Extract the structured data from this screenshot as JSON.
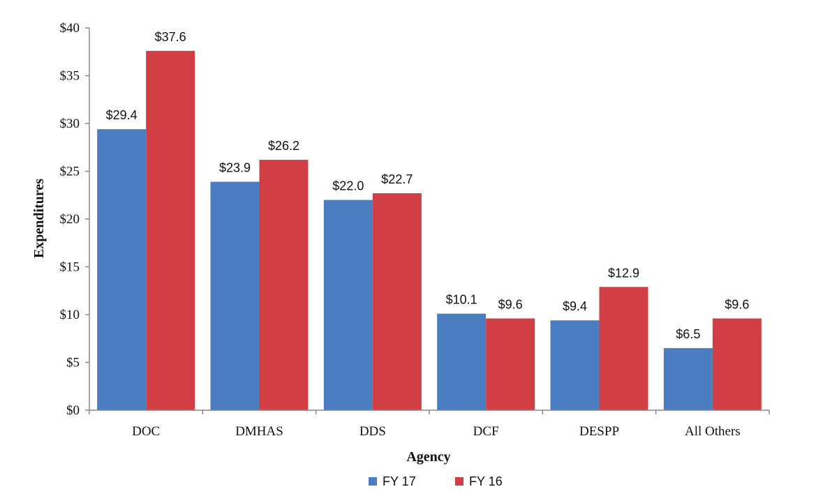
{
  "chart_data": {
    "type": "bar",
    "title": "",
    "xlabel": "Agency",
    "ylabel": "Expenditures",
    "categories": [
      "DOC",
      "DMHAS",
      "DDS",
      "DCF",
      "DESPP",
      "All Others"
    ],
    "series": [
      {
        "name": "FY 17",
        "color": "#4a7ec1",
        "values": [
          29.4,
          23.9,
          22.0,
          10.1,
          9.4,
          6.5
        ],
        "labels": [
          "$29.4",
          "$23.9",
          "$22.0",
          "$10.1",
          "$9.4",
          "$6.5"
        ]
      },
      {
        "name": "FY 16",
        "color": "#d13f44",
        "values": [
          37.6,
          26.2,
          22.7,
          9.6,
          12.9,
          9.6
        ],
        "labels": [
          "$37.6",
          "$26.2",
          "$22.7",
          "$9.6",
          "$12.9",
          "$9.6"
        ]
      }
    ],
    "ylim": [
      0,
      40
    ],
    "yticks": [
      0,
      5,
      10,
      15,
      20,
      25,
      30,
      35,
      40
    ],
    "ytick_labels": [
      "$0",
      "$5",
      "$10",
      "$15",
      "$20",
      "$25",
      "$30",
      "$35",
      "$40"
    ],
    "grid": false,
    "legend_position": "bottom-center"
  }
}
